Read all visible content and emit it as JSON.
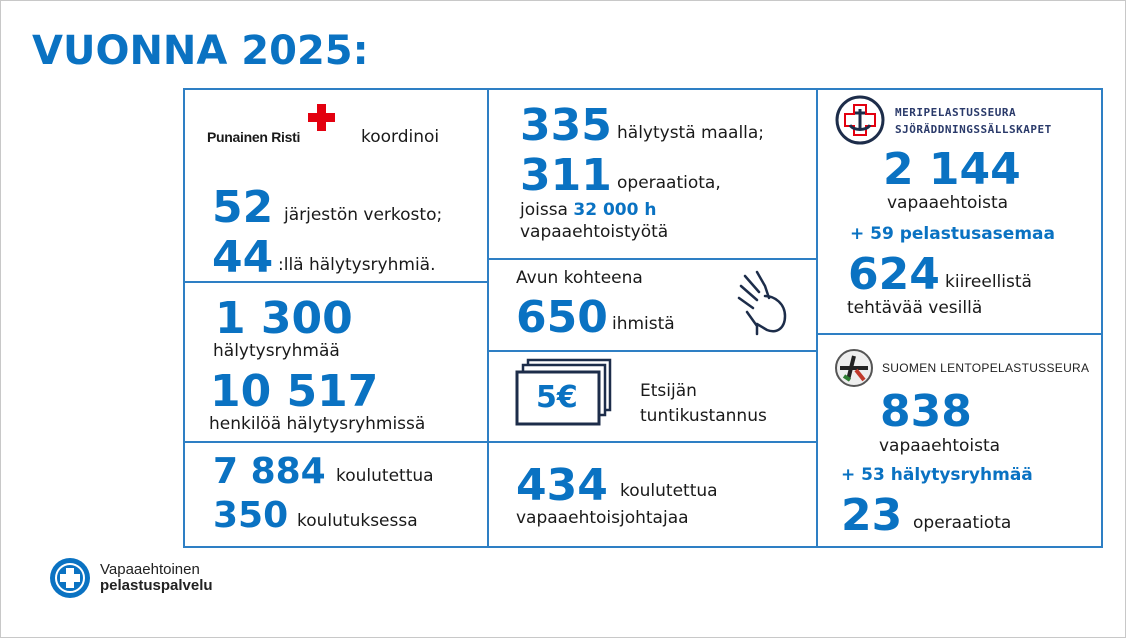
{
  "title": "VUONNA 2025:",
  "colors": {
    "accent": "#0a72c2",
    "border": "#2e7fc4",
    "red_cross": "#e3000f"
  },
  "red_cross": {
    "logo": "Punainen Risti",
    "text": "koordinoi",
    "n1": "52",
    "t1": "järjestön verkosto;",
    "n2": "44",
    "t2": ":llä hälytysryhmiä."
  },
  "groups": {
    "n1": "1 300",
    "t1": "hälytysryhmää",
    "n2": "10 517",
    "t2": "henkilöä hälytysryhmissä"
  },
  "training": {
    "n1": "7 884",
    "t1": "koulutettua",
    "n2": "350",
    "t2": "koulutuksessa"
  },
  "alerts": {
    "n1": "335",
    "t1": "hälytystä maalla;",
    "n2": "311",
    "t2": "operaatiota,",
    "t3a": "joissa",
    "t3b": "32 000 h",
    "t4": "vapaaehtoistyötä"
  },
  "helped": {
    "t1": "Avun kohteena",
    "n1": "650",
    "t2": "ihmistä",
    "icon": "helping-hands-icon"
  },
  "cost": {
    "badge": "5€",
    "t1": "Etsijän",
    "t2": "tuntikustannus",
    "icon": "banknotes-icon"
  },
  "leaders": {
    "n1": "434",
    "t1": "koulutettua",
    "t2": "vapaaehtoisjohtajaa"
  },
  "sea": {
    "logo1": "MERIPELASTUSSEURA",
    "logo2": "SJÖRÄDDNINGSSÄLLSKAPET",
    "n1": "2 144",
    "t1": "vapaaehtoista",
    "t2": "+ 59 pelastusasemaa",
    "n2": "624",
    "t3": "kiireellistä",
    "t4": "tehtävää vesillä"
  },
  "air": {
    "logo": "SUOMEN LENTOPELASTUSSEURA",
    "n1": "838",
    "t1": "vapaaehtoista",
    "t2": "+ 53 hälytysryhmää",
    "n2": "23",
    "t3": "operaatiota"
  },
  "footer": {
    "logo1": "Vapaaehtoinen",
    "logo2": "pelastuspalvelu"
  }
}
